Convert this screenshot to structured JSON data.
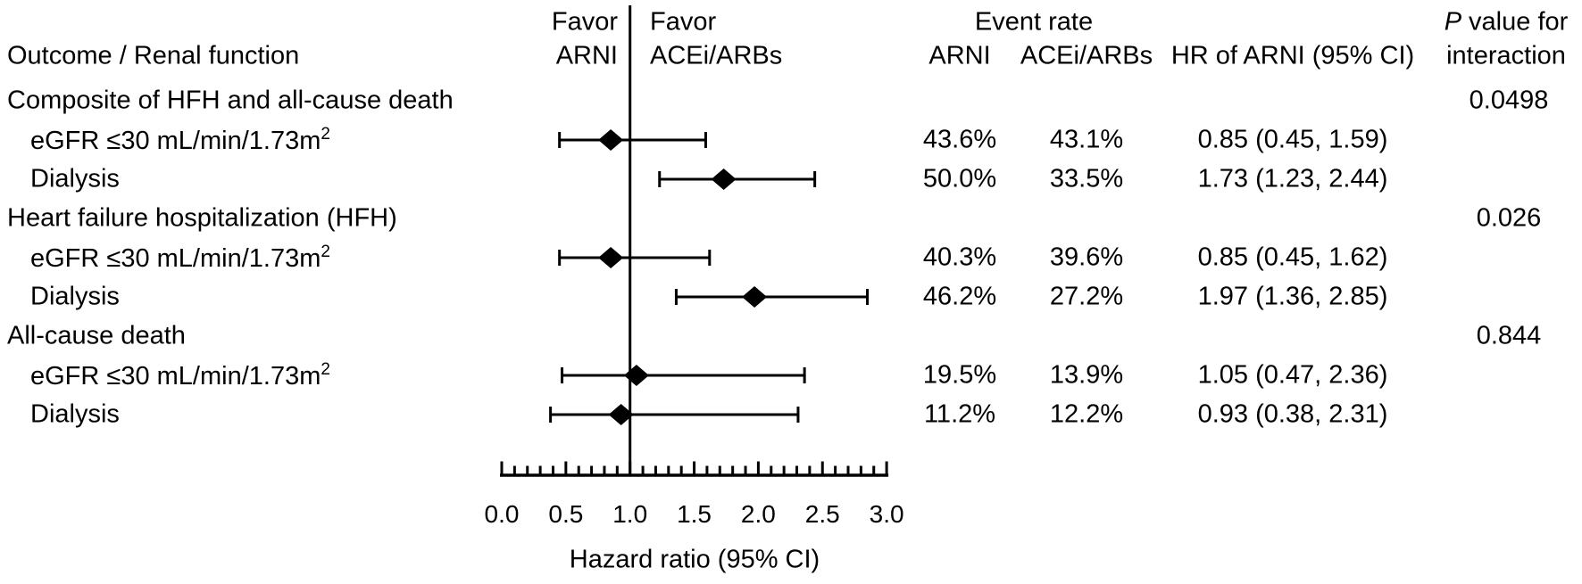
{
  "colors": {
    "ink": "#000000",
    "background": "#ffffff"
  },
  "header": {
    "outcome_col": "Outcome / Renal function",
    "favor_left_line1": "Favor",
    "favor_left_line2": "ARNI",
    "favor_right_line1": "Favor",
    "favor_right_line2": "ACEi/ARBs",
    "event_rate": "Event rate",
    "event_rate_arni": "ARNI",
    "event_rate_acei": "ACEi/ARBs",
    "hr_col": "HR of ARNI (95% CI)",
    "p_col_line1_italic": "P",
    "p_col_line1_rest": "value for",
    "p_col_line2": "interaction"
  },
  "chart_data": {
    "type": "forest",
    "xlabel": "Hazard ratio (95% CI)",
    "xlim": [
      0.0,
      3.0
    ],
    "x_tick_labels": [
      "0.0",
      "0.5",
      "1.0",
      "1.5",
      "2.0",
      "2.5",
      "3.0"
    ],
    "x_minor_step": 0.1,
    "reference_line": 1.0,
    "favor_left": "Favor ARNI",
    "favor_right": "Favor ACEi/ARBs",
    "rows": [
      {
        "kind": "group",
        "label": "Composite of HFH and all-cause death",
        "p_value": "0.0498"
      },
      {
        "kind": "item",
        "label": "eGFR ≤30 mL/min/1.73m",
        "label_sup": "2",
        "hr": 0.85,
        "lo": 0.45,
        "hi": 1.59,
        "arni": "43.6%",
        "acei": "43.1%",
        "hr_text": "0.85 (0.45, 1.59)"
      },
      {
        "kind": "item",
        "label": "Dialysis",
        "hr": 1.73,
        "lo": 1.23,
        "hi": 2.44,
        "arni": "50.0%",
        "acei": "33.5%",
        "hr_text": "1.73 (1.23, 2.44)"
      },
      {
        "kind": "group",
        "label": "Heart failure hospitalization (HFH)",
        "p_value": "0.026"
      },
      {
        "kind": "item",
        "label": "eGFR ≤30 mL/min/1.73m",
        "label_sup": "2",
        "hr": 0.85,
        "lo": 0.45,
        "hi": 1.62,
        "arni": "40.3%",
        "acei": "39.6%",
        "hr_text": "0.85 (0.45, 1.62)"
      },
      {
        "kind": "item",
        "label": "Dialysis",
        "hr": 1.97,
        "lo": 1.36,
        "hi": 2.85,
        "arni": "46.2%",
        "acei": "27.2%",
        "hr_text": "1.97 (1.36, 2.85)"
      },
      {
        "kind": "group",
        "label": "All-cause death",
        "p_value": "0.844"
      },
      {
        "kind": "item",
        "label": "eGFR ≤30 mL/min/1.73m",
        "label_sup": "2",
        "hr": 1.05,
        "lo": 0.47,
        "hi": 2.36,
        "arni": "19.5%",
        "acei": "13.9%",
        "hr_text": "1.05 (0.47, 2.36)"
      },
      {
        "kind": "item",
        "label": "Dialysis",
        "hr": 0.93,
        "lo": 0.38,
        "hi": 2.31,
        "arni": "11.2%",
        "acei": "12.2%",
        "hr_text": "0.93 (0.38, 2.31)"
      }
    ]
  }
}
